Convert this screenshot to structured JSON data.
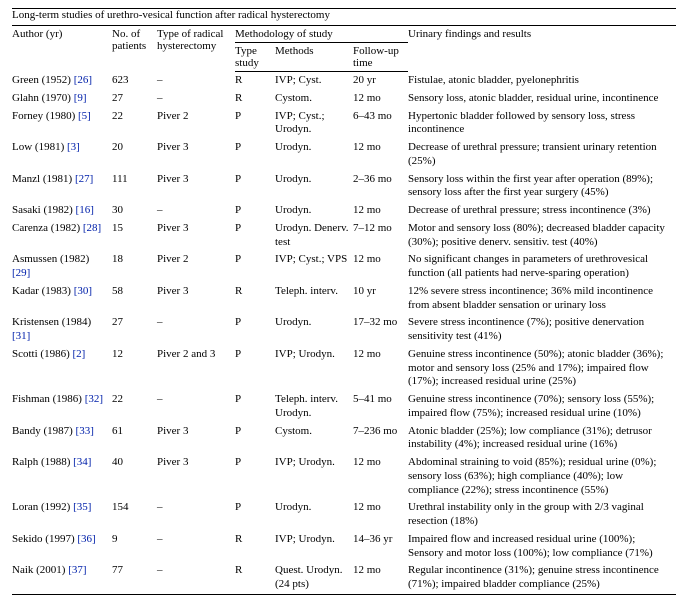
{
  "title": "Long-term studies of urethro-vesical function after radical hysterectomy",
  "columns": {
    "author": "Author (yr)",
    "npat": "No. of patients",
    "type": "Type of radical hysterectomy",
    "methodology": "Methodology of study",
    "type_study": "Type study",
    "methods": "Methods",
    "fu": "Follow-up time",
    "findings": "Urinary findings and results"
  },
  "rows": [
    {
      "author_pre": "Green (1952) ",
      "ref": "[26]",
      "npat": "623",
      "type": "–",
      "tstudy": "R",
      "methods": "IVP; Cyst.",
      "fu": "20 yr",
      "findings": "Fistulae, atonic bladder, pyelonephritis"
    },
    {
      "author_pre": "Glahn (1970) ",
      "ref": "[9]",
      "npat": "27",
      "type": "–",
      "tstudy": "R",
      "methods": "Cystom.",
      "fu": "12 mo",
      "findings": "Sensory loss, atonic bladder, residual urine, incontinence"
    },
    {
      "author_pre": "Forney (1980) ",
      "ref": "[5]",
      "npat": "22",
      "type": "Piver 2",
      "tstudy": "P",
      "methods": "IVP; Cyst.; Urodyn.",
      "fu": "6–43 mo",
      "findings": "Hypertonic bladder followed by sensory loss, stress incontinence"
    },
    {
      "author_pre": "Low (1981) ",
      "ref": "[3]",
      "npat": "20",
      "type": "Piver 3",
      "tstudy": "P",
      "methods": "Urodyn.",
      "fu": "12 mo",
      "findings": "Decrease of urethral pressure; transient urinary retention (25%)"
    },
    {
      "author_pre": "Manzl (1981) ",
      "ref": "[27]",
      "npat": "111",
      "type": "Piver 3",
      "tstudy": "P",
      "methods": "Urodyn.",
      "fu": "2–36 mo",
      "findings": "Sensory loss within the first year after operation (89%); sensory loss after the first year surgery (45%)"
    },
    {
      "author_pre": "Sasaki (1982) ",
      "ref": "[16]",
      "npat": "30",
      "type": "–",
      "tstudy": "P",
      "methods": "Urodyn.",
      "fu": "12 mo",
      "findings": "Decrease of urethral pressure; stress incontinence (3%)"
    },
    {
      "author_pre": "Carenza (1982) ",
      "ref": "[28]",
      "npat": "15",
      "type": "Piver 3",
      "tstudy": "P",
      "methods": "Urodyn. Denerv. test",
      "fu": "7–12 mo",
      "findings": "Motor and sensory loss (80%); decreased bladder capacity (30%); positive denerv. sensitiv. test (40%)"
    },
    {
      "author_pre": "Asmussen (1982) ",
      "ref": "[29]",
      "npat": "18",
      "type": "Piver 2",
      "tstudy": "P",
      "methods": "IVP; Cyst.; VPS",
      "fu": "12 mo",
      "findings": "No significant changes in parameters of urethrovesical function (all patients had nerve-sparing operation)"
    },
    {
      "author_pre": "Kadar (1983) ",
      "ref": "[30]",
      "npat": "58",
      "type": "Piver 3",
      "tstudy": "R",
      "methods": "Teleph. interv.",
      "fu": "10 yr",
      "findings": "12% severe stress incontinence; 36% mild incontinence from absent bladder sensation or urinary loss"
    },
    {
      "author_pre": "Kristensen (1984) ",
      "ref": "[31]",
      "npat": "27",
      "type": "–",
      "tstudy": "P",
      "methods": "Urodyn.",
      "fu": "17–32 mo",
      "findings": "Severe stress incontinence (7%); positive denervation sensitivity test (41%)"
    },
    {
      "author_pre": "Scotti (1986) ",
      "ref": "[2]",
      "npat": "12",
      "type": "Piver 2 and 3",
      "tstudy": "P",
      "methods": "IVP; Urodyn.",
      "fu": "12 mo",
      "findings": "Genuine stress incontinence (50%); atonic bladder (36%); motor and sensory loss (25% and 17%); impaired flow (17%); increased residual urine (25%)"
    },
    {
      "author_pre": "Fishman (1986) ",
      "ref": "[32]",
      "npat": "22",
      "type": "–",
      "tstudy": "P",
      "methods": "Teleph. interv. Urodyn.",
      "fu": "5–41 mo",
      "findings": "Genuine stress incontinence (70%); sensory loss (55%); impaired flow (75%); increased residual urine (10%)"
    },
    {
      "author_pre": "Bandy (1987) ",
      "ref": "[33]",
      "npat": "61",
      "type": "Piver 3",
      "tstudy": "P",
      "methods": "Cystom.",
      "fu": "7–236 mo",
      "findings": "Atonic bladder (25%); low compliance (31%); detrusor instability (4%); increased residual urine (16%)"
    },
    {
      "author_pre": "Ralph (1988) ",
      "ref": "[34]",
      "npat": "40",
      "type": "Piver 3",
      "tstudy": "P",
      "methods": "IVP; Urodyn.",
      "fu": "12 mo",
      "findings": "Abdominal straining to void (85%); residual urine (0%); sensory loss (63%); high compliance (40%); low compliance (22%); stress incontinence (55%)"
    },
    {
      "author_pre": "Loran (1992) ",
      "ref": "[35]",
      "npat": "154",
      "type": "–",
      "tstudy": "P",
      "methods": "Urodyn.",
      "fu": "12 mo",
      "findings": "Urethral instability only in the group with 2/3 vaginal resection (18%)"
    },
    {
      "author_pre": "Sekido (1997) ",
      "ref": "[36]",
      "npat": "9",
      "type": "–",
      "tstudy": "R",
      "methods": "IVP; Urodyn.",
      "fu": "14–36 yr",
      "findings": "Impaired flow and increased residual urine (100%); Sensory and motor loss (100%); low compliance (71%)"
    },
    {
      "author_pre": "Naik (2001) ",
      "ref": "[37]",
      "npat": "77",
      "type": "–",
      "tstudy": "R",
      "methods": "Quest. Urodyn. (24 pts)",
      "fu": "12 mo",
      "findings": "Regular incontinence (31%); genuine stress incontinence (71%); impaired bladder compliance (25%)"
    }
  ]
}
